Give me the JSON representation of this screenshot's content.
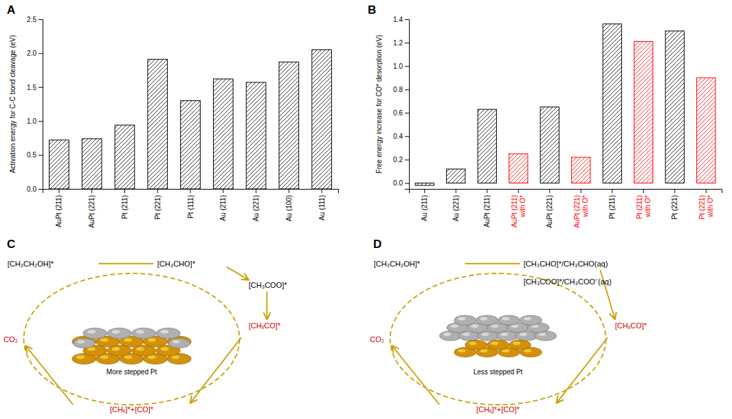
{
  "chart_data": [
    {
      "type": "bar",
      "title": "A",
      "categories": [
        "AuPt (211)",
        "AuPt (221)",
        "Pt (211)",
        "Pt (221)",
        "Pt (111)",
        "Au (211)",
        "Au (221)",
        "Au (100)",
        "Au (111)"
      ],
      "values": [
        0.72,
        0.74,
        0.94,
        1.91,
        1.3,
        1.62,
        1.57,
        1.87,
        2.05
      ],
      "color": "black",
      "ylabel": "Activation energy for C-C bond cleavage (eV)",
      "ylim": [
        0.0,
        2.5
      ],
      "yticks": [
        {
          "value": 0.0,
          "label": "0.0"
        },
        0.5,
        {
          "value": 1.0,
          "label": "1.0"
        },
        1.5,
        {
          "value": 2.0,
          "label": "2.0"
        },
        2.5
      ]
    },
    {
      "type": "bar",
      "title": "B",
      "categories": [
        "Au (211)",
        "Au (221)",
        "AuPt (211)",
        "AuPt (211)\nwith O*",
        "AuPt (221)",
        "AuPt (221)\nwith O*",
        "Pt (211)",
        "Pt (211)\nwith O*",
        "Pt (221)",
        "Pt (221)\nwith O*"
      ],
      "values": [
        -0.02,
        0.12,
        0.63,
        0.25,
        0.65,
        0.22,
        1.36,
        1.21,
        1.3,
        0.9
      ],
      "colors": [
        "black",
        "black",
        "black",
        "red",
        "black",
        "red",
        "black",
        "red",
        "black",
        "red"
      ],
      "ylabel": "Free energy increase for CO* desorption (eV)",
      "ylim": [
        -0.05,
        1.4
      ],
      "yticks": [
        {
          "value": 0.0,
          "label": "0.0"
        },
        0.2,
        0.4,
        0.6,
        0.8,
        {
          "value": 1.0,
          "label": "1.0"
        },
        1.2,
        1.4
      ]
    },
    {
      "type": "diagram",
      "title": "C",
      "color": "#C8A000",
      "colors": [
        "#D4900A",
        "#B0B0B0"
      ],
      "annotations": [
        {
          "text": "More stepped Pt",
          "color": "black"
        },
        {
          "text": "[CH₃CH₂OH]*",
          "color": "black"
        },
        {
          "text": "[CH₃CHO]*",
          "color": "black"
        },
        {
          "text": "[CH₃COO]*",
          "color": "black"
        },
        {
          "text": "[CHₓCO]*",
          "color": "#CC0000"
        },
        {
          "text": "[CHₓ]*+[CO]*",
          "color": "#CC0000"
        },
        {
          "text": "CO₂",
          "color": "#CC0000"
        }
      ]
    },
    {
      "type": "diagram",
      "title": "D",
      "color": "#C8A000",
      "colors": [
        "#D4900A",
        "#B0B0B0"
      ],
      "annotations": [
        {
          "text": "Less stepped Pt",
          "color": "black"
        },
        {
          "text": "[CH₃CH₂OH]*",
          "color": "black"
        },
        {
          "text": "[CH₃CHO]*/CH₃CHO(aq)",
          "color": "black"
        },
        {
          "text": "[CH₃COO]*/CH₃COO⁻(aq)",
          "color": "black"
        },
        {
          "text": "[CHₓCO]*",
          "color": "#CC0000"
        },
        {
          "text": "[CHₓ]*+[CO]*",
          "color": "#CC0000"
        },
        {
          "text": "CO₂",
          "color": "#CC0000"
        }
      ]
    }
  ]
}
